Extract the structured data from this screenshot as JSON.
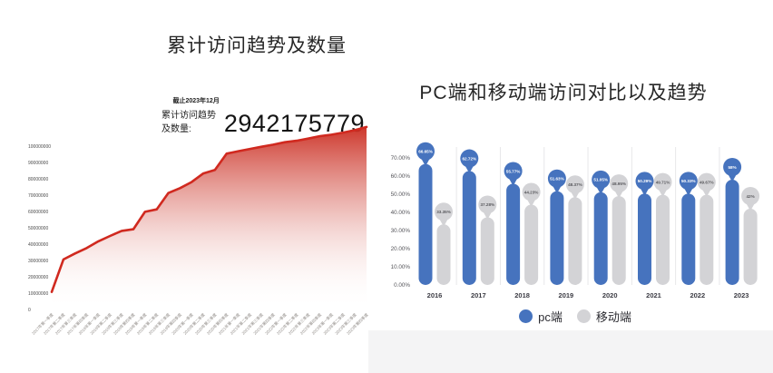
{
  "chart_data": [
    {
      "id": "cumulative-visits",
      "type": "area",
      "title": "累计访问趋势及数量",
      "annotation": {
        "as_of": "截止2023年12月",
        "stat_label": "累计访问趋势及数量:",
        "stat_value": "2942175779"
      },
      "x": [
        "2017年第一季度",
        "2017年第二季度",
        "2017年第三季度",
        "2017年第四季度",
        "2018年第一季度",
        "2018年第二季度",
        "2018年第三季度",
        "2018年第四季度",
        "2019年第一季度",
        "2019年第二季度",
        "2019年第三季度",
        "2019年第四季度",
        "2020年第一季度",
        "2020年第二季度",
        "2020年第三季度",
        "2020年第四季度",
        "2021年第一季度",
        "2021年第二季度",
        "2021年第三季度",
        "2021年第四季度",
        "2022年第一季度",
        "2022年第二季度",
        "2022年第三季度",
        "2022年第四季度",
        "2023年第一季度",
        "2023年第二季度",
        "2023年第三季度",
        "2023年第四季度"
      ],
      "values": [
        10700000,
        30600000,
        34300000,
        37600000,
        41700000,
        45000000,
        48100000,
        49100000,
        59800000,
        61300000,
        71300000,
        74300000,
        78000000,
        83300000,
        85400000,
        95400000,
        96900000,
        98300000,
        99600000,
        100900000,
        102400000,
        103300000,
        104600000,
        106100000,
        107000000,
        108300000,
        109800000,
        111700000
      ],
      "y_ticks": [
        "0",
        "10000000",
        "20000000",
        "30000000",
        "40000000",
        "50000000",
        "60000000",
        "70000000",
        "80000000",
        "90000000",
        "100000000"
      ],
      "ylim": [
        0,
        100000000
      ],
      "grid": false,
      "colors": {
        "line": "#d0291f",
        "fill_top": "#cb2d21",
        "fill_bottom": "#ffffff"
      }
    },
    {
      "id": "pc-vs-mobile",
      "type": "bar",
      "title": "PC端和移动端访问对比以及趋势",
      "categories": [
        "2016",
        "2017",
        "2018",
        "2019",
        "2020",
        "2021",
        "2022",
        "2023"
      ],
      "series": [
        {
          "name": "pc端",
          "color": "#4673be",
          "label_text_color": "#ffffff",
          "values": [
            66.65,
            62.72,
            55.77,
            51.63,
            51.05,
            50.29,
            50.33,
            58
          ],
          "labels": [
            "66.65%",
            "62.72%",
            "55.77%",
            "51.63%",
            "51.05%",
            "50.29%",
            "50.33%",
            "58%"
          ]
        },
        {
          "name": "移动端",
          "color": "#d3d3d6",
          "label_text_color": "#5a5a5e",
          "values": [
            33.35,
            37.28,
            44.23,
            48.37,
            48.95,
            49.71,
            49.67,
            42
          ],
          "labels": [
            "33.35%",
            "37.28%",
            "44.23%",
            "48.37%",
            "48.95%",
            "49.71%",
            "49.67%",
            "42%"
          ]
        }
      ],
      "y_ticks": [
        "0.00%",
        "10.00%",
        "20.00%",
        "30.00%",
        "40.00%",
        "50.00%",
        "60.00%",
        "70.00%"
      ],
      "ylim": [
        0,
        70
      ],
      "grid": false,
      "legend_position": "bottom",
      "colors": {
        "separator": "#e7e7e9",
        "axis_text": "#55555a",
        "year_text": "#3c3c44"
      }
    }
  ]
}
